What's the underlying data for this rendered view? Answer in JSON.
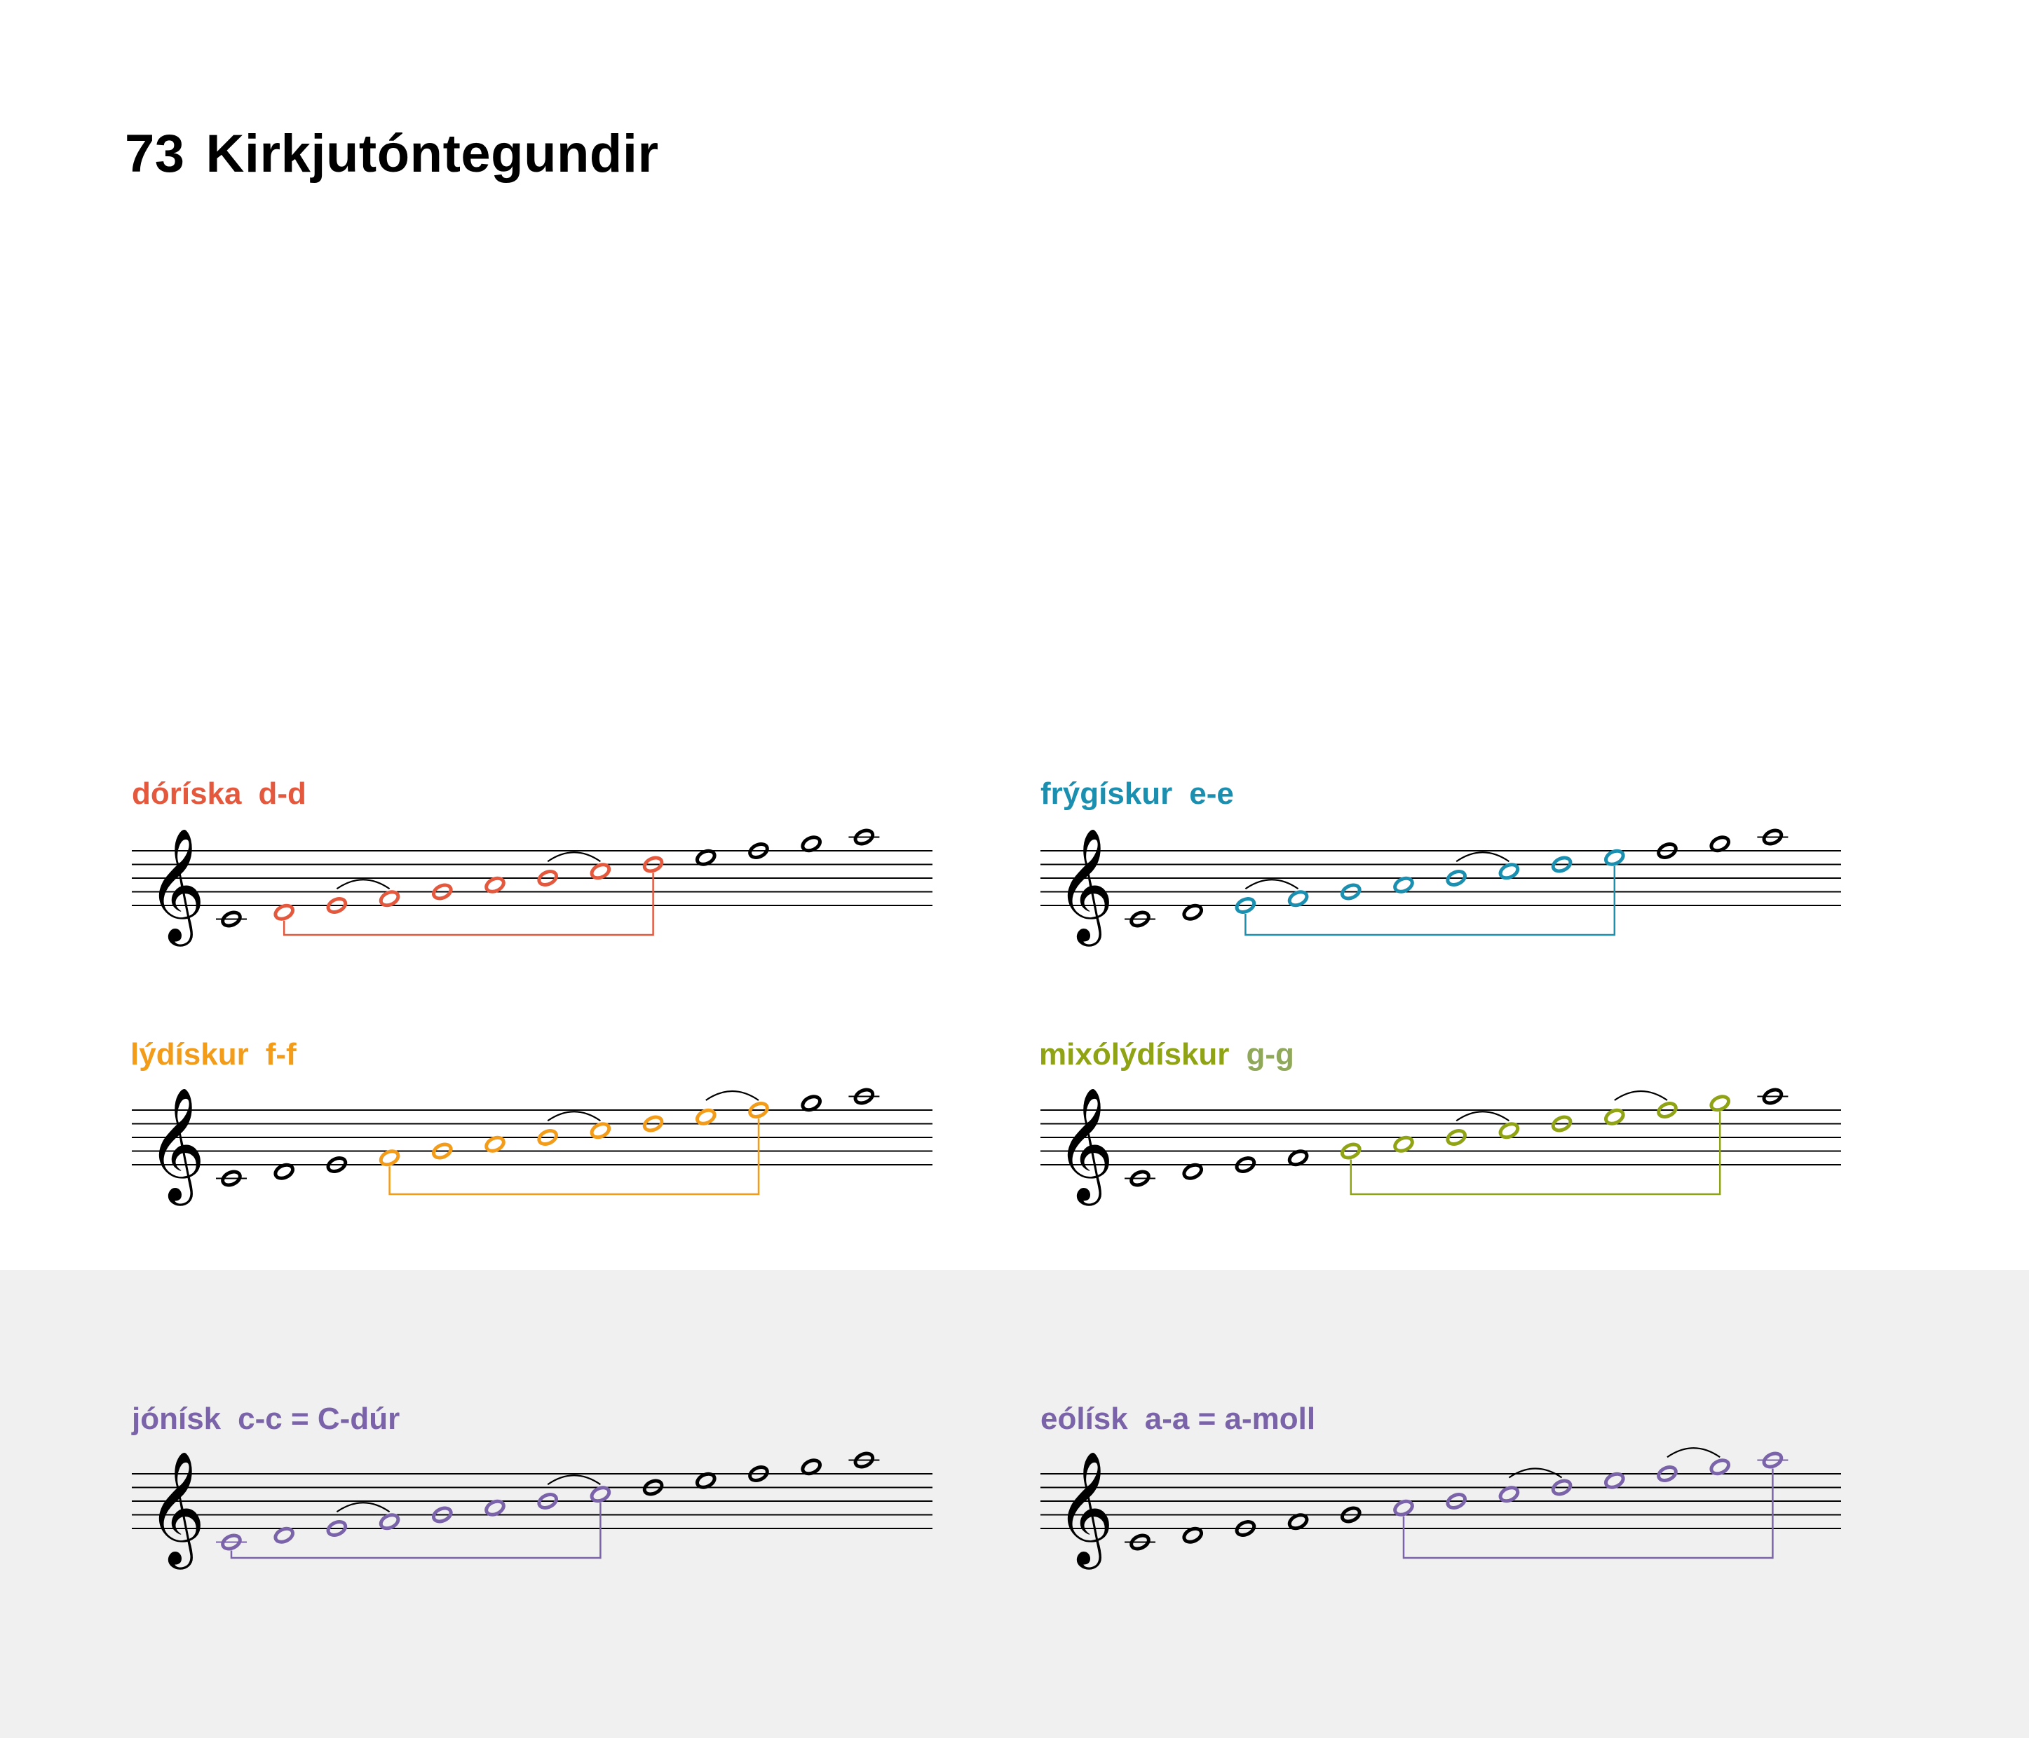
{
  "title": {
    "number": "73",
    "text": "Kirkjutóntegundir"
  },
  "modes": [
    {
      "id": "dorian",
      "name": "dóríska",
      "range": "d-d",
      "name_color": "#e4593e",
      "range_color": "#e4593e",
      "notes": [
        "C4",
        "D4",
        "E4",
        "F4",
        "G4",
        "A4",
        "B4",
        "C5",
        "D5",
        "E5",
        "F5",
        "G5",
        "A5"
      ],
      "mode_start": 1,
      "mode_end": 8,
      "slurs": [
        [
          2,
          3
        ],
        [
          6,
          7
        ]
      ]
    },
    {
      "id": "phrygian",
      "name": "frýgískur",
      "range": "e-e",
      "name_color": "#1a8fb0",
      "range_color": "#1a8fb0",
      "notes": [
        "C4",
        "D4",
        "E4",
        "F4",
        "G4",
        "A4",
        "B4",
        "C5",
        "D5",
        "E5",
        "F5",
        "G5",
        "A5"
      ],
      "mode_start": 2,
      "mode_end": 9,
      "slurs": [
        [
          2,
          3
        ],
        [
          6,
          7
        ]
      ]
    },
    {
      "id": "lydian",
      "name": "lýdískur",
      "range": "f-f",
      "name_color": "#f29c1a",
      "range_color": "#f29c1a",
      "notes": [
        "C4",
        "D4",
        "E4",
        "F4",
        "G4",
        "A4",
        "B4",
        "C5",
        "D5",
        "E5",
        "F5",
        "G5",
        "A5"
      ],
      "mode_start": 3,
      "mode_end": 10,
      "slurs": [
        [
          6,
          7
        ],
        [
          9,
          10
        ]
      ]
    },
    {
      "id": "mixolydian",
      "name": "mixólýdískur",
      "range": "g-g",
      "name_color": "#8fa314",
      "range_color": "#8fa85a",
      "notes": [
        "C4",
        "D4",
        "E4",
        "F4",
        "G4",
        "A4",
        "B4",
        "C5",
        "D5",
        "E5",
        "F5",
        "G5",
        "A5"
      ],
      "mode_start": 4,
      "mode_end": 11,
      "slurs": [
        [
          6,
          7
        ],
        [
          9,
          10
        ]
      ]
    },
    {
      "id": "ionian",
      "name": "jónísk",
      "range": "c-c = C-dúr",
      "name_color": "#7a63a8",
      "range_color": "#7a63a8",
      "notes": [
        "C4",
        "D4",
        "E4",
        "F4",
        "G4",
        "A4",
        "B4",
        "C5",
        "D5",
        "E5",
        "F5",
        "G5",
        "A5"
      ],
      "mode_start": 0,
      "mode_end": 7,
      "slurs": [
        [
          2,
          3
        ],
        [
          6,
          7
        ]
      ]
    },
    {
      "id": "aeolian",
      "name": "eólísk",
      "range": "a-a = a-moll",
      "name_color": "#7a63a8",
      "range_color": "#7a63a8",
      "notes": [
        "C4",
        "D4",
        "E4",
        "F4",
        "G4",
        "A4",
        "B4",
        "C5",
        "D5",
        "E5",
        "F5",
        "G5",
        "A5"
      ],
      "mode_start": 5,
      "mode_end": 12,
      "slurs": [
        [
          7,
          8
        ],
        [
          10,
          11
        ]
      ]
    }
  ]
}
